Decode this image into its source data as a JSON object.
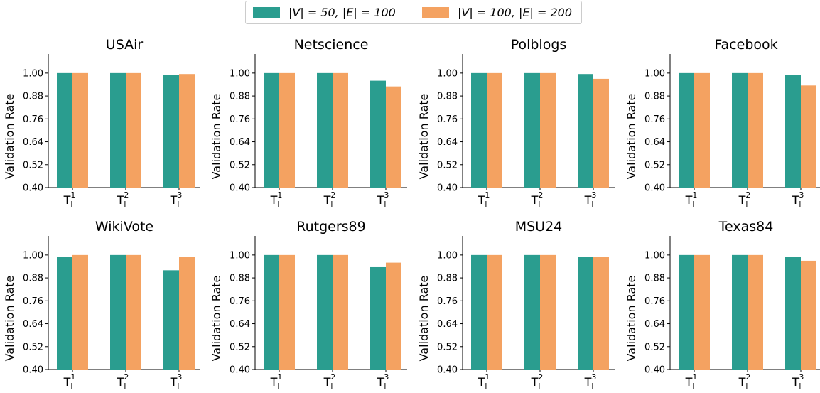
{
  "legend": {
    "series": [
      {
        "label": "|V| = 50, |E| = 100",
        "color": "#2a9d8f"
      },
      {
        "label": "|V| = 100, |E| = 200",
        "color": "#f4a261"
      }
    ]
  },
  "chart_data": [
    {
      "type": "bar",
      "title": "USAir",
      "ylabel": "Validation Rate",
      "ylim": [
        0.4,
        1.1
      ],
      "yticks": [
        "0.40",
        "0.52",
        "0.64",
        "0.76",
        "0.88",
        "1.00"
      ],
      "categories": [
        "T_l^1",
        "T_l^2",
        "T_l^3"
      ],
      "series": [
        {
          "name": "|V| = 50, |E| = 100",
          "values": [
            1.0,
            1.0,
            0.99
          ]
        },
        {
          "name": "|V| = 100, |E| = 200",
          "values": [
            1.0,
            1.0,
            0.995
          ]
        }
      ]
    },
    {
      "type": "bar",
      "title": "Netscience",
      "ylabel": "Validation Rate",
      "ylim": [
        0.4,
        1.1
      ],
      "yticks": [
        "0.40",
        "0.52",
        "0.64",
        "0.76",
        "0.88",
        "1.00"
      ],
      "categories": [
        "T_l^1",
        "T_l^2",
        "T_l^3"
      ],
      "series": [
        {
          "name": "|V| = 50, |E| = 100",
          "values": [
            1.0,
            1.0,
            0.96
          ]
        },
        {
          "name": "|V| = 100, |E| = 200",
          "values": [
            1.0,
            1.0,
            0.93
          ]
        }
      ]
    },
    {
      "type": "bar",
      "title": "Polblogs",
      "ylabel": "Validation Rate",
      "ylim": [
        0.4,
        1.1
      ],
      "yticks": [
        "0.40",
        "0.52",
        "0.64",
        "0.76",
        "0.88",
        "1.00"
      ],
      "categories": [
        "T_l^1",
        "T_l^2",
        "T_l^3"
      ],
      "series": [
        {
          "name": "|V| = 50, |E| = 100",
          "values": [
            1.0,
            1.0,
            0.995
          ]
        },
        {
          "name": "|V| = 100, |E| = 200",
          "values": [
            1.0,
            1.0,
            0.97
          ]
        }
      ]
    },
    {
      "type": "bar",
      "title": "Facebook",
      "ylabel": "Validation Rate",
      "ylim": [
        0.4,
        1.1
      ],
      "yticks": [
        "0.40",
        "0.52",
        "0.64",
        "0.76",
        "0.88",
        "1.00"
      ],
      "categories": [
        "T_l^1",
        "T_l^2",
        "T_l^3"
      ],
      "series": [
        {
          "name": "|V| = 50, |E| = 100",
          "values": [
            1.0,
            1.0,
            0.99
          ]
        },
        {
          "name": "|V| = 100, |E| = 200",
          "values": [
            1.0,
            1.0,
            0.935
          ]
        }
      ]
    },
    {
      "type": "bar",
      "title": "WikiVote",
      "ylabel": "Validation Rate",
      "ylim": [
        0.4,
        1.1
      ],
      "yticks": [
        "0.40",
        "0.52",
        "0.64",
        "0.76",
        "0.88",
        "1.00"
      ],
      "categories": [
        "T_l^1",
        "T_l^2",
        "T_l^3"
      ],
      "series": [
        {
          "name": "|V| = 50, |E| = 100",
          "values": [
            0.99,
            1.0,
            0.92
          ]
        },
        {
          "name": "|V| = 100, |E| = 200",
          "values": [
            1.0,
            1.0,
            0.99
          ]
        }
      ]
    },
    {
      "type": "bar",
      "title": "Rutgers89",
      "ylabel": "Validation Rate",
      "ylim": [
        0.4,
        1.1
      ],
      "yticks": [
        "0.40",
        "0.52",
        "0.64",
        "0.76",
        "0.88",
        "1.00"
      ],
      "categories": [
        "T_l^1",
        "T_l^2",
        "T_l^3"
      ],
      "series": [
        {
          "name": "|V| = 50, |E| = 100",
          "values": [
            1.0,
            1.0,
            0.94
          ]
        },
        {
          "name": "|V| = 100, |E| = 200",
          "values": [
            1.0,
            1.0,
            0.96
          ]
        }
      ]
    },
    {
      "type": "bar",
      "title": "MSU24",
      "ylabel": "Validation Rate",
      "ylim": [
        0.4,
        1.1
      ],
      "yticks": [
        "0.40",
        "0.52",
        "0.64",
        "0.76",
        "0.88",
        "1.00"
      ],
      "categories": [
        "T_l^1",
        "T_l^2",
        "T_l^3"
      ],
      "series": [
        {
          "name": "|V| = 50, |E| = 100",
          "values": [
            1.0,
            1.0,
            0.99
          ]
        },
        {
          "name": "|V| = 100, |E| = 200",
          "values": [
            1.0,
            1.0,
            0.99
          ]
        }
      ]
    },
    {
      "type": "bar",
      "title": "Texas84",
      "ylabel": "Validation Rate",
      "ylim": [
        0.4,
        1.1
      ],
      "yticks": [
        "0.40",
        "0.52",
        "0.64",
        "0.76",
        "0.88",
        "1.00"
      ],
      "categories": [
        "T_l^1",
        "T_l^2",
        "T_l^3"
      ],
      "series": [
        {
          "name": "|V| = 50, |E| = 100",
          "values": [
            1.0,
            1.0,
            0.99
          ]
        },
        {
          "name": "|V| = 100, |E| = 200",
          "values": [
            1.0,
            1.0,
            0.97
          ]
        }
      ]
    }
  ]
}
